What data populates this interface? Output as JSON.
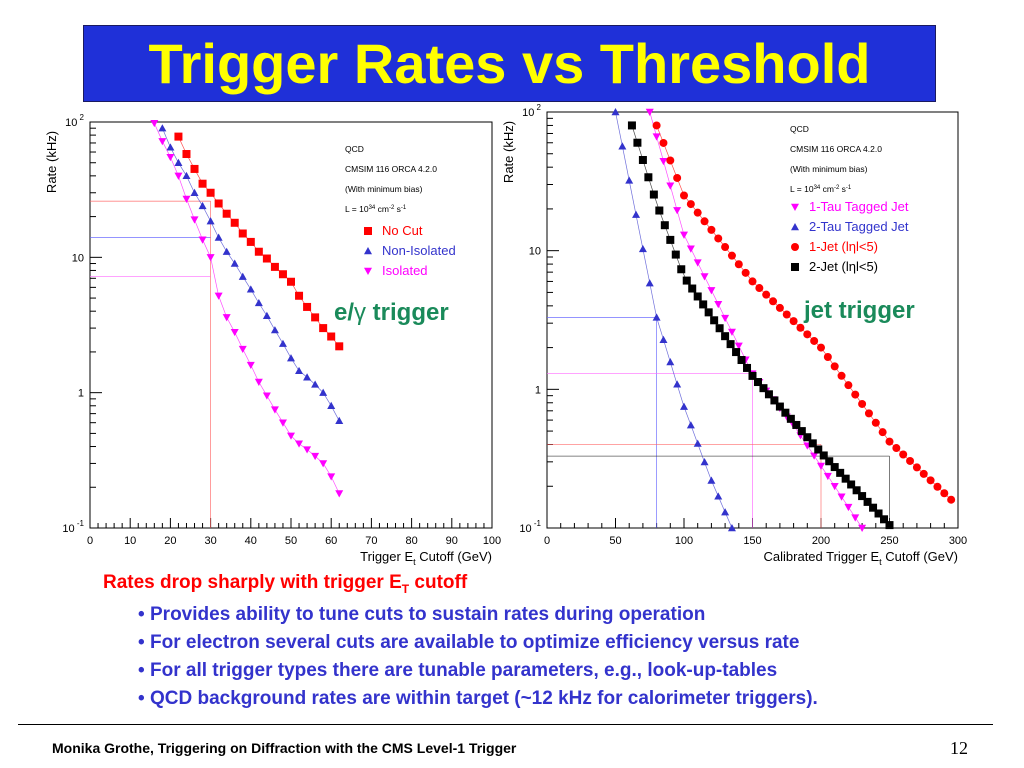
{
  "slide": {
    "title": "Trigger Rates vs Threshold",
    "summary": "Rates drop sharply with trigger E",
    "summary_sub": "T",
    "summary_tail": " cutoff",
    "bullets": [
      "Provides ability to tune cuts to sustain rates during operation",
      "For electron several cuts are available to optimize efficiency versus rate",
      "For all trigger types there are tunable parameters, e.g., look-up-tables",
      "QCD background rates are within target (~12 kHz  for calorimeter triggers)."
    ],
    "footer": "Monika Grothe, Triggering on Diffraction with the CMS Level-1 Trigger",
    "page_number": "12"
  },
  "colors": {
    "title_bg": "#1f30d8",
    "title_fg": "#ffff00",
    "red": "#ff0000",
    "blue": "#3333cc",
    "magenta": "#ff00ff",
    "black": "#000000",
    "teal": "#1a8a5a"
  },
  "chart_data": [
    {
      "type": "scatter",
      "title": "",
      "xlabel": "Trigger E",
      "xlabel_sub": "t",
      "xlabel_tail": " Cutoff (GeV)",
      "ylabel": "Rate (kHz)",
      "xlim": [
        0,
        100
      ],
      "ylim": [
        0.1,
        100
      ],
      "yscale": "log",
      "x_ticks": [
        "0",
        "10",
        "20",
        "30",
        "40",
        "50",
        "60",
        "70",
        "80",
        "90",
        "100"
      ],
      "y_tick_labels": [
        {
          "value": 100,
          "base": "10",
          "exp": "2"
        },
        {
          "value": 10,
          "base": "10",
          "exp": ""
        },
        {
          "value": 1,
          "base": "1",
          "exp": ""
        },
        {
          "value": 0.1,
          "base": "10",
          "exp": "-1"
        }
      ],
      "info_lines": [
        "QCD",
        "CMSIM 116 ORCA 4.2.0",
        "(With minimum bias)"
      ],
      "lumi": {
        "text": "L = 10",
        "exp": "34",
        "unit": " cm",
        "unit_exp": "-2",
        "tail": " s",
        "tail_exp": "-1"
      },
      "annotation": {
        "pre": "e/",
        "greek": "γ",
        "post": " trigger"
      },
      "reference_lines": {
        "x": 30,
        "y": [
          26,
          14,
          7.2
        ]
      },
      "series": [
        {
          "name": "No Cut",
          "marker": "square",
          "color": "#ff0000",
          "x": [
            22,
            24,
            26,
            28,
            30,
            32,
            34,
            36,
            38,
            40,
            42,
            44,
            46,
            48,
            50,
            52,
            54,
            56,
            58,
            60,
            62
          ],
          "y": [
            78,
            58,
            45,
            35,
            30,
            25,
            21,
            18,
            15,
            13,
            11,
            9.8,
            8.5,
            7.5,
            6.6,
            5.2,
            4.3,
            3.6,
            3.0,
            2.6,
            2.2
          ]
        },
        {
          "name": "Non-Isolated",
          "marker": "triangle-up",
          "color": "#3333cc",
          "x": [
            18,
            20,
            22,
            24,
            26,
            28,
            30,
            32,
            34,
            36,
            38,
            40,
            42,
            44,
            46,
            48,
            50,
            52,
            54,
            56,
            58,
            60,
            62
          ],
          "y": [
            90,
            65,
            50,
            40,
            30,
            24,
            18.5,
            14,
            11,
            9.0,
            7.2,
            5.8,
            4.6,
            3.7,
            2.9,
            2.3,
            1.8,
            1.45,
            1.3,
            1.15,
            1.0,
            0.8,
            0.62
          ]
        },
        {
          "name": "Isolated",
          "marker": "triangle-down",
          "color": "#ff00ff",
          "x": [
            16,
            18,
            20,
            22,
            24,
            26,
            28,
            30,
            32,
            34,
            36,
            38,
            40,
            42,
            44,
            46,
            48,
            50,
            52,
            54,
            56,
            58,
            60,
            62
          ],
          "y": [
            98,
            72,
            55,
            40,
            27,
            19,
            13.5,
            10,
            5.2,
            3.6,
            2.8,
            2.1,
            1.6,
            1.2,
            0.95,
            0.75,
            0.6,
            0.48,
            0.42,
            0.38,
            0.34,
            0.3,
            0.24,
            0.18
          ]
        }
      ]
    },
    {
      "type": "scatter",
      "title": "",
      "xlabel": "Calibrated Trigger E",
      "xlabel_sub": "t",
      "xlabel_tail": " Cutoff (GeV)",
      "ylabel": "Rate (kHz)",
      "xlim": [
        0,
        300
      ],
      "ylim": [
        0.1,
        100
      ],
      "yscale": "log",
      "x_ticks": [
        "0",
        "50",
        "100",
        "150",
        "200",
        "250",
        "300"
      ],
      "y_tick_labels": [
        {
          "value": 100,
          "base": "10",
          "exp": "2"
        },
        {
          "value": 10,
          "base": "10",
          "exp": ""
        },
        {
          "value": 1,
          "base": "1",
          "exp": ""
        },
        {
          "value": 0.1,
          "base": "10",
          "exp": "-1"
        }
      ],
      "info_lines": [
        "QCD",
        "CMSIM 116 ORCA 4.2.0",
        "(With minimum bias)"
      ],
      "lumi": {
        "text": "L = 10",
        "exp": "34",
        "unit": " cm",
        "unit_exp": "-2",
        "tail": " s",
        "tail_exp": "-1"
      },
      "annotation": {
        "pre": "jet trigger",
        "greek": "",
        "post": ""
      },
      "reference_lines": {
        "x": [
          80,
          150,
          200,
          250
        ],
        "y": [
          3.3,
          1.3,
          0.4,
          0.33
        ]
      },
      "series": [
        {
          "name": "1-Tau Tagged Jet",
          "marker": "triangle-down",
          "color": "#ff00ff",
          "start": 75,
          "end": 230,
          "step": 5,
          "points": [
            [
              75,
              100
            ],
            [
              100,
              13
            ],
            [
              150,
              1.3
            ],
            [
              180,
              0.55
            ],
            [
              210,
              0.2
            ],
            [
              230,
              0.1
            ]
          ]
        },
        {
          "name": "2-Tau Tagged Jet",
          "marker": "triangle-up",
          "color": "#3333cc",
          "start": 50,
          "end": 135,
          "step": 5,
          "points": [
            [
              50,
              100
            ],
            [
              80,
              3.3
            ],
            [
              100,
              0.75
            ],
            [
              120,
              0.22
            ],
            [
              135,
              0.1
            ]
          ]
        },
        {
          "name": "1-Jet (lηl<5)",
          "marker": "circle",
          "color": "#ff0000",
          "start": 80,
          "end": 295,
          "step": 5,
          "points": [
            [
              80,
              80
            ],
            [
              100,
              25
            ],
            [
              150,
              6
            ],
            [
              200,
              2
            ],
            [
              250,
              0.42
            ],
            [
              295,
              0.16
            ]
          ]
        },
        {
          "name": "2-Jet (lηl<5)",
          "marker": "square",
          "color": "#000000",
          "start": 62,
          "end": 252,
          "step": 4,
          "points": [
            [
              62,
              80
            ],
            [
              80,
              22
            ],
            [
              100,
              6.5
            ],
            [
              150,
              1.25
            ],
            [
              200,
              0.35
            ],
            [
              252,
              0.1
            ]
          ]
        }
      ]
    }
  ]
}
